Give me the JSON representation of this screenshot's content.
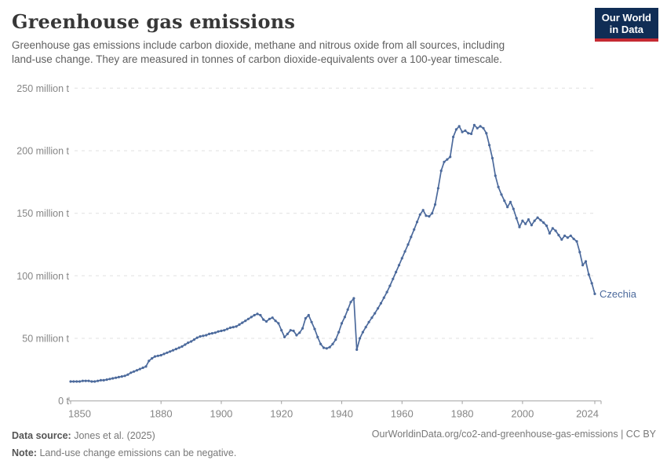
{
  "header": {
    "title": "Greenhouse gas emissions",
    "subtitle_line1": "Greenhouse gas emissions include carbon dioxide, methane and nitrous oxide from all sources, including",
    "subtitle_line2": "land-use change. They are measured in tonnes of carbon dioxide-equivalents over a 100-year timescale.",
    "logo_line1": "Our World",
    "logo_line2": "in Data"
  },
  "footer": {
    "datasource_label": "Data source:",
    "datasource_value": "Jones et al. (2025)",
    "note_label": "Note:",
    "note_value": "Land-use change emissions can be negative.",
    "url": "OurWorldinData.org/co2-and-greenhouse-gas-emissions | CC BY"
  },
  "colors": {
    "line": "#4C6A9C",
    "grid": "#e0e0e0",
    "axis": "#a1a1a1",
    "tick_text": "#868686",
    "logo_bg": "#102d55",
    "logo_red": "#c52a32",
    "title_text": "#373737",
    "subtitle_text": "#606060",
    "footer_text": "#787878"
  },
  "chart_data": {
    "type": "line",
    "title": "Greenhouse gas emissions",
    "series_label": "Czechia",
    "grid": true,
    "legend_position": "end-of-line",
    "ylim": [
      0,
      250
    ],
    "y_ticks": [
      {
        "value": 0,
        "label": "0 t"
      },
      {
        "value": 50,
        "label": "50 million t"
      },
      {
        "value": 100,
        "label": "100 million t"
      },
      {
        "value": 150,
        "label": "150 million t"
      },
      {
        "value": 200,
        "label": "200 million t"
      },
      {
        "value": 250,
        "label": "250 million t"
      }
    ],
    "x_ticks": [
      {
        "year": 1850,
        "label": "1850"
      },
      {
        "year": 1880,
        "label": "1880"
      },
      {
        "year": 1900,
        "label": "1900"
      },
      {
        "year": 1920,
        "label": "1920"
      },
      {
        "year": 1940,
        "label": "1940"
      },
      {
        "year": 1960,
        "label": "1960"
      },
      {
        "year": 1980,
        "label": "1980"
      },
      {
        "year": 2000,
        "label": "2000"
      },
      {
        "year": 2024,
        "label": "2024"
      }
    ],
    "x_range": [
      1850,
      2024
    ],
    "unit_suffix": "million t",
    "values": [
      15.5,
      15.5,
      15.5,
      15.5,
      16,
      16,
      16,
      15.5,
      15.5,
      16,
      16.5,
      16.5,
      17,
      17.5,
      18,
      18.5,
      19,
      19.5,
      20,
      21,
      22.5,
      23.5,
      24.5,
      25.5,
      26.5,
      27.5,
      32,
      34,
      35.5,
      36,
      36.5,
      37.5,
      38.5,
      39.5,
      40.5,
      41.5,
      42.5,
      43.5,
      45,
      46.5,
      47.5,
      49,
      50.5,
      51.5,
      52,
      52.5,
      53.5,
      54,
      54.5,
      55.5,
      56,
      56.5,
      57.5,
      58.5,
      59,
      59.5,
      61,
      62.5,
      64,
      65.5,
      67,
      68.5,
      69.5,
      68.5,
      65,
      63.5,
      65.5,
      66.5,
      64,
      62,
      56.5,
      51,
      53.5,
      56.5,
      56,
      52.5,
      54.5,
      58,
      66,
      68.5,
      63,
      57.5,
      51,
      45.5,
      42.5,
      42,
      43,
      45.5,
      49,
      55,
      62,
      67,
      73,
      79,
      82,
      41,
      50,
      55,
      59,
      63,
      66.5,
      70,
      74,
      78,
      82.5,
      87,
      92,
      97.5,
      103,
      108.5,
      114,
      119.5,
      125,
      131,
      137,
      143,
      149,
      152.5,
      148,
      147.5,
      150,
      157,
      170,
      184,
      191,
      193,
      195,
      211,
      217,
      219.5,
      215,
      216,
      214,
      213.5,
      220.5,
      218,
      219.5,
      218,
      214,
      204.5,
      194,
      180,
      171,
      165,
      160,
      155,
      159,
      153.5,
      146,
      139,
      144,
      141.5,
      145,
      140.5,
      144,
      146.5,
      144.5,
      142.5,
      140,
      134,
      138,
      136,
      132.5,
      129,
      132,
      130.5,
      132,
      129.5,
      127.5,
      119,
      108.5,
      111.5,
      101,
      94,
      85.5
    ]
  }
}
